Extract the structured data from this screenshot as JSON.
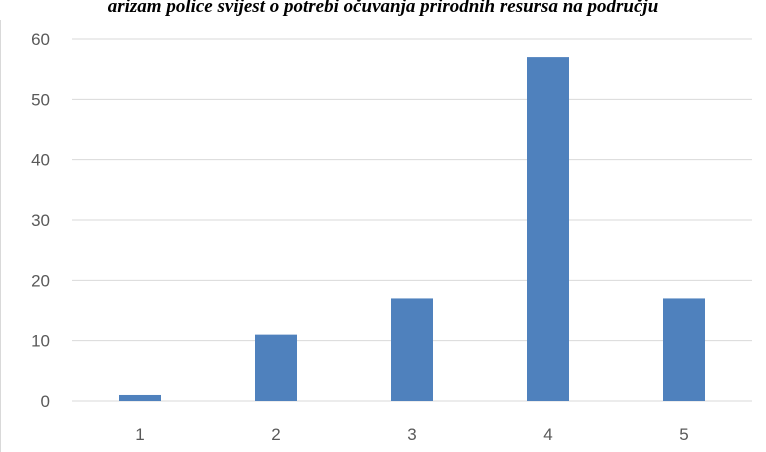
{
  "chart_data": {
    "type": "bar",
    "title": "arizam police svijest o potrebi očuvanja prirodnih resursa na području",
    "xlabel": "",
    "ylabel": "",
    "categories": [
      "1",
      "2",
      "3",
      "4",
      "5"
    ],
    "series": [
      {
        "values": [
          1,
          11,
          17,
          57,
          17
        ]
      }
    ],
    "ylim": [
      0,
      60
    ],
    "yticks": [
      "0",
      "10",
      "20",
      "30",
      "40",
      "50",
      "60"
    ],
    "grid": true,
    "legend": "none",
    "colors": {
      "bar": "#4f81bd",
      "grid": "#d9d9d9",
      "tick_text": "#595959",
      "title_text": "#000000"
    }
  }
}
